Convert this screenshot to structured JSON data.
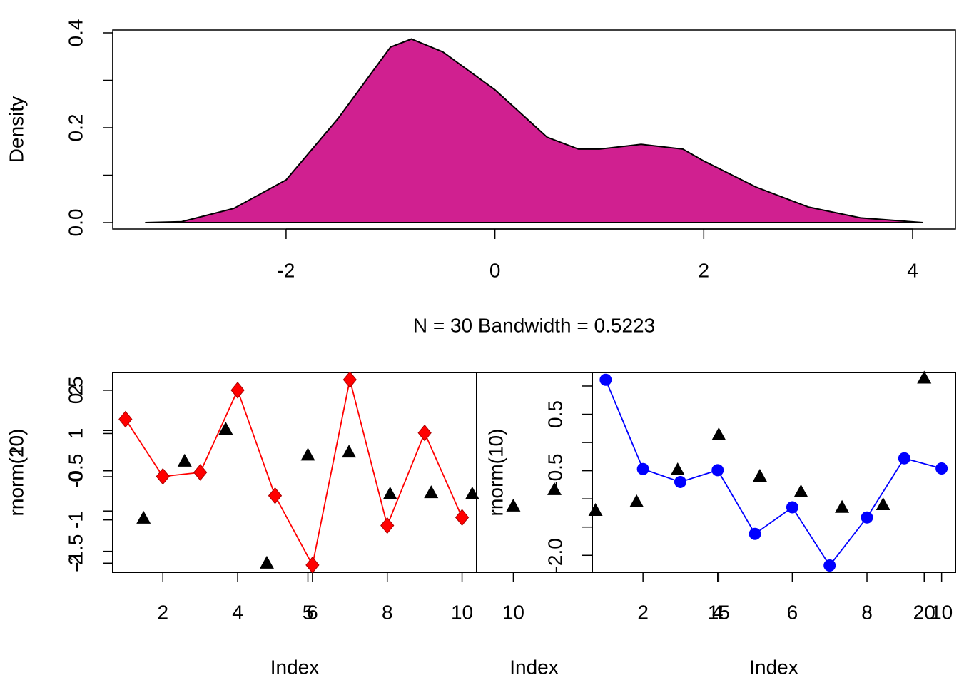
{
  "chart_data": [
    {
      "type": "area",
      "xlabel": "N = 30   Bandwidth = 0.5223",
      "ylabel": "Density",
      "x": [
        -3.35,
        -3.0,
        -2.5,
        -2.0,
        -1.5,
        -1.0,
        -0.8,
        -0.5,
        0,
        0.5,
        0.8,
        1.0,
        1.4,
        1.8,
        2.0,
        2.5,
        3.0,
        3.5,
        4.1
      ],
      "values": [
        0,
        0.002,
        0.03,
        0.09,
        0.22,
        0.37,
        0.387,
        0.36,
        0.28,
        0.18,
        0.155,
        0.155,
        0.165,
        0.155,
        0.13,
        0.075,
        0.033,
        0.01,
        0
      ],
      "color": "#d02090",
      "xlim": [
        -3.66,
        4.41
      ],
      "ylim": [
        -0.0135,
        0.406
      ],
      "xticks": [
        -2,
        0,
        2,
        4
      ],
      "yticks": [
        {
          "value": 0,
          "label": "0.0"
        },
        {
          "value": 0.2,
          "label": "0.2"
        },
        {
          "value": 0.4,
          "label": "0.4"
        }
      ],
      "yminorticks": [
        0.1,
        0.3
      ]
    },
    {
      "type": "scatter",
      "xlabel": "Index",
      "ylabel": "rnorm(20)",
      "x": [
        1,
        2,
        3,
        4,
        5,
        6,
        7,
        8,
        9,
        10,
        11,
        12,
        13,
        14,
        15,
        16,
        17,
        18,
        19,
        20
      ],
      "values": [
        -0.97,
        0.35,
        1.09,
        -2.01,
        0.49,
        0.56,
        -0.41,
        -0.38,
        -0.41,
        -0.69,
        -0.31,
        -0.79,
        -0.59,
        0.15,
        0.96,
        0,
        -0.36,
        -0.72,
        -0.66,
        2.27
      ],
      "color": "#000000",
      "marker": "triangle",
      "xlim": [
        0.25,
        20.76
      ],
      "ylim": [
        -2.21,
        2.41
      ],
      "xticks": [
        5,
        10,
        15,
        20
      ],
      "yticks": [
        -2,
        -1,
        0,
        1,
        2
      ]
    },
    {
      "type": "line",
      "xlabel": "Index",
      "ylabel": "rnorm(10)",
      "x": [
        1,
        2,
        3,
        4,
        5,
        6,
        7,
        8,
        9,
        10
      ],
      "values": [
        0.14,
        -0.57,
        -0.52,
        0.5,
        -0.81,
        -1.67,
        0.63,
        -1.18,
        -0.03,
        -1.08
      ],
      "color": "#ff0000",
      "marker": "diamond",
      "xlim": [
        0.66,
        10.39
      ],
      "ylim": [
        -1.76,
        0.72
      ],
      "xticks": [
        2,
        4,
        6,
        8,
        10
      ],
      "yticks": [
        -1.5,
        -0.5,
        0.5
      ],
      "yminorticks": [
        -1,
        0
      ]
    },
    {
      "type": "line",
      "xlabel": "Index",
      "ylabel": "rnorm(10)",
      "x": [
        1,
        2,
        3,
        4,
        5,
        6,
        7,
        8,
        9,
        10
      ],
      "values": [
        1.11,
        -0.47,
        -0.7,
        -0.49,
        -1.62,
        -1.15,
        -2.18,
        -1.33,
        -0.28,
        -0.46
      ],
      "color": "#0000ff",
      "marker": "circle",
      "xlim": [
        0.64,
        10.37
      ],
      "ylim": [
        -2.3,
        1.24
      ],
      "xticks": [
        2,
        4,
        6,
        8,
        10
      ],
      "yticks": [
        {
          "value": -2,
          "label": "-2.0"
        },
        -0.5,
        0.5
      ],
      "yminorticks": [
        -1.5,
        -1,
        0,
        1
      ]
    }
  ]
}
